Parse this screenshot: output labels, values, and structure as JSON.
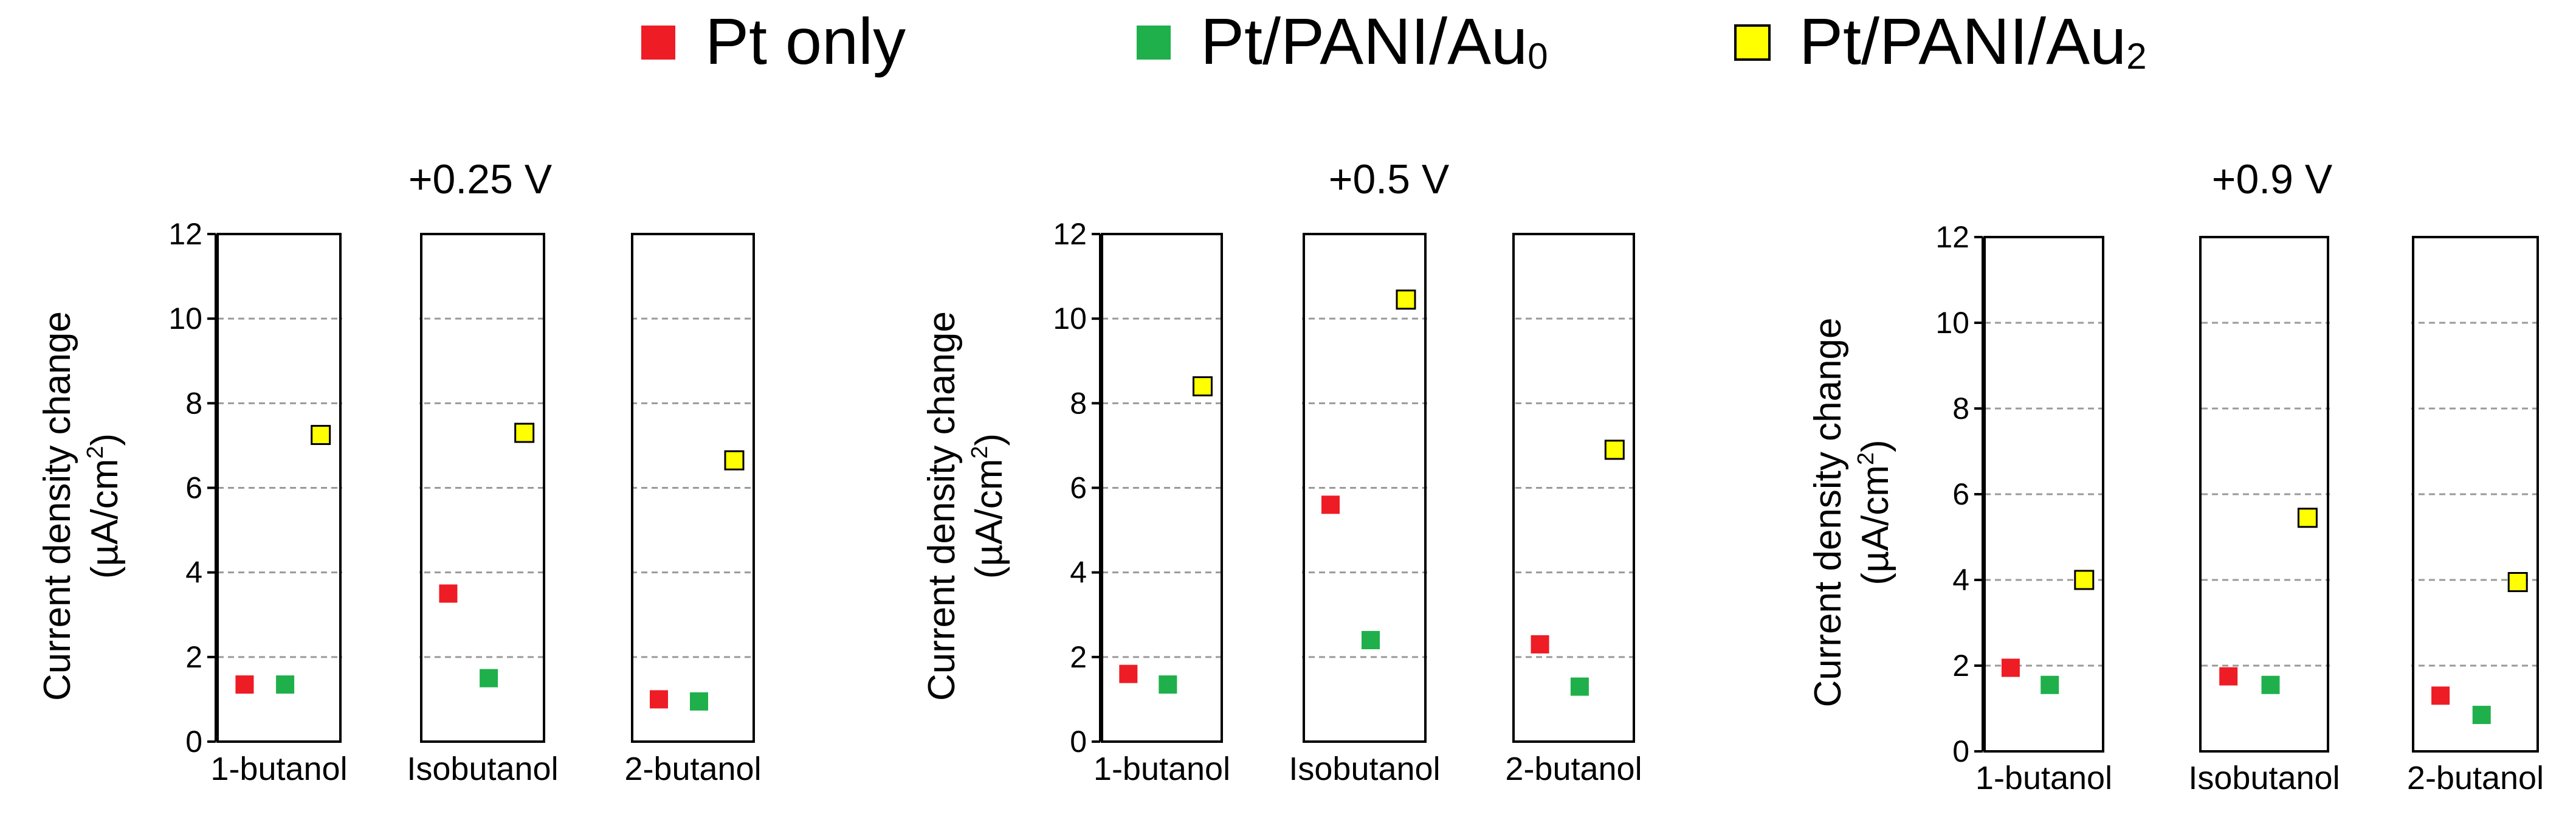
{
  "legend": {
    "entries": [
      {
        "name": "Pt only",
        "color": "#ee1c25",
        "sub": ""
      },
      {
        "name": "Pt/PANI/Au",
        "color": "#1fb04b",
        "sub": "0"
      },
      {
        "name": "Pt/PANI/Au",
        "color": "#ffff00",
        "sub": "2"
      }
    ]
  },
  "chart_data": [
    {
      "type": "scatter",
      "title": "+0.25 V",
      "ylabel": [
        "Current density change",
        "(µA/cm",
        "2",
        ")"
      ],
      "ylim": [
        0,
        12
      ],
      "yticks": [
        0,
        2,
        4,
        6,
        8,
        10,
        12
      ],
      "grid": true,
      "categories": [
        "1-butanol",
        "Isobutanol",
        "2-butanol"
      ],
      "series": [
        {
          "name": "Pt only",
          "values": [
            1.35,
            3.5,
            1.0
          ]
        },
        {
          "name": "Pt/PANI/Au0",
          "values": [
            1.35,
            1.5,
            0.95
          ]
        },
        {
          "name": "Pt/PANI/Au2",
          "values": [
            7.25,
            7.3,
            6.65
          ]
        }
      ]
    },
    {
      "type": "scatter",
      "title": "+0.5 V",
      "ylabel": [
        "Current density change",
        "(µA/cm",
        "2",
        ")"
      ],
      "ylim": [
        0,
        12
      ],
      "yticks": [
        0,
        2,
        4,
        6,
        8,
        10,
        12
      ],
      "grid": true,
      "categories": [
        "1-butanol",
        "Isobutanol",
        "2-butanol"
      ],
      "series": [
        {
          "name": "Pt only",
          "values": [
            1.6,
            5.6,
            2.3
          ]
        },
        {
          "name": "Pt/PANI/Au0",
          "values": [
            1.35,
            2.4,
            1.3
          ]
        },
        {
          "name": "Pt/PANI/Au2",
          "values": [
            8.4,
            10.45,
            6.9
          ]
        }
      ]
    },
    {
      "type": "scatter",
      "title": "+0.9 V",
      "ylabel": [
        "Current density change",
        "(µA/cm",
        "2",
        ")"
      ],
      "ylim": [
        0,
        12
      ],
      "yticks": [
        0,
        2,
        4,
        6,
        8,
        10,
        12
      ],
      "grid": true,
      "categories": [
        "1-butanol",
        "Isobutanol",
        "2-butanol"
      ],
      "series": [
        {
          "name": "Pt only",
          "values": [
            1.95,
            1.75,
            1.3
          ]
        },
        {
          "name": "Pt/PANI/Au0",
          "values": [
            1.55,
            1.55,
            0.85
          ]
        },
        {
          "name": "Pt/PANI/Au2",
          "values": [
            4.0,
            5.45,
            3.95
          ]
        }
      ]
    }
  ]
}
